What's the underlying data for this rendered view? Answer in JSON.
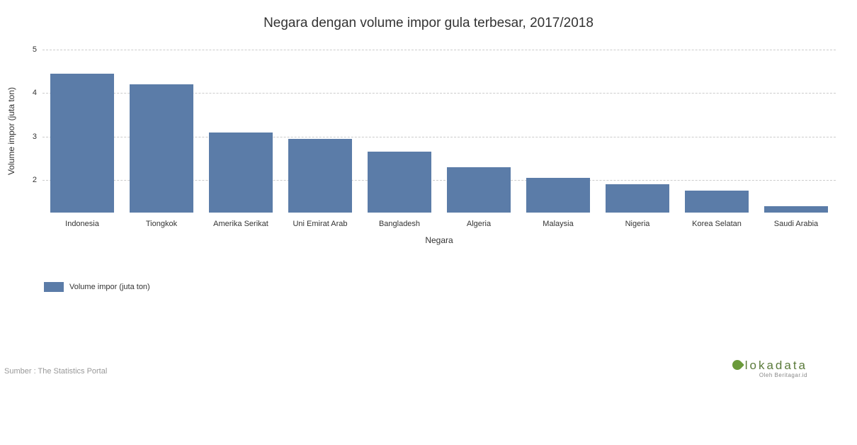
{
  "chart": {
    "type": "bar",
    "title": "Negara dengan volume impor gula terbesar, 2017/2018",
    "title_fontsize": 19,
    "title_color": "#333333",
    "x_axis_label": "Negara",
    "y_axis_label": "Volume impor (juta ton)",
    "label_fontsize": 12,
    "tick_fontsize": 11,
    "background_color": "#ffffff",
    "grid_color": "#cccccc",
    "grid_dashed": true,
    "ylim": [
      1.25,
      5
    ],
    "yticks": [
      2,
      3,
      4,
      5
    ],
    "bar_color": "#5b7ca8",
    "bar_width": 0.8,
    "categories": [
      "Indonesia",
      "Tiongkok",
      "Amerika Serikat",
      "Uni Emirat Arab",
      "Bangladesh",
      "Algeria",
      "Malaysia",
      "Nigeria",
      "Korea Selatan",
      "Saudi Arabia"
    ],
    "values": [
      4.45,
      4.2,
      3.1,
      2.95,
      2.65,
      2.3,
      2.05,
      1.9,
      1.75,
      1.4
    ]
  },
  "legend": {
    "swatch_color": "#5b7ca8",
    "label": "Volume impor (juta ton)"
  },
  "source": {
    "text": "Sumber : The Statistics Portal",
    "color": "#999999",
    "fontsize": 11
  },
  "brand": {
    "name": "lokadata",
    "sub": "Oleh Beritagar.id",
    "leaf_color": "#6a9a3a",
    "text_color": "#5a7a3a"
  }
}
